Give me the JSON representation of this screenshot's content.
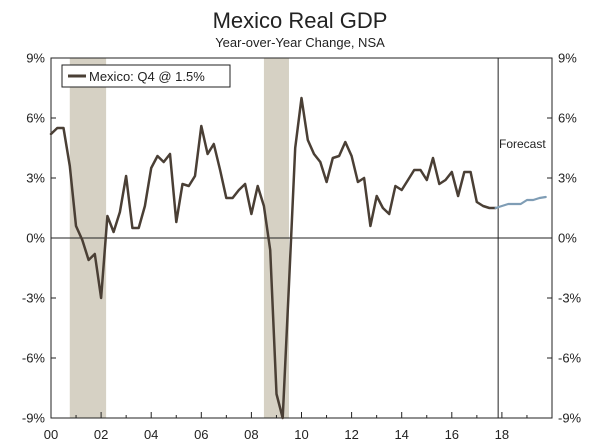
{
  "chart_data": {
    "type": "line",
    "title": "Mexico Real GDP",
    "subtitle": "Year-over-Year Change, NSA",
    "xlabel": "",
    "ylabel": "",
    "xlim": [
      2000.0,
      2020.0
    ],
    "ylim": [
      -9,
      9
    ],
    "y_ticks_left": [
      "9%",
      "6%",
      "3%",
      "0%",
      "-3%",
      "-6%",
      "-9%"
    ],
    "y_ticks_right": [
      "9%",
      "6%",
      "3%",
      "0%",
      "-3%",
      "-6%",
      "-9%"
    ],
    "y_tick_values": [
      9,
      6,
      3,
      0,
      -3,
      -6,
      -9
    ],
    "x_ticks": [
      "00",
      "02",
      "04",
      "06",
      "08",
      "10",
      "12",
      "14",
      "16",
      "18"
    ],
    "x_tick_values": [
      2000,
      2002,
      2004,
      2006,
      2008,
      2010,
      2012,
      2014,
      2016,
      2018
    ],
    "grid": false,
    "legend_placement": "top-left",
    "recessions": [
      [
        2000.75,
        2002.2
      ],
      [
        2008.5,
        2009.5
      ]
    ],
    "forecast_start": 2017.85,
    "annotation": "Forecast",
    "colors": {
      "actual": "#4a3f35",
      "forecast": "#7f9db5",
      "recession": "#d6d1c4",
      "axis": "#222222"
    },
    "series": [
      {
        "name": "Mexico: Q4 @ 1.5%",
        "x": [
          2000.0,
          2000.25,
          2000.5,
          2000.75,
          2001.0,
          2001.25,
          2001.5,
          2001.75,
          2002.0,
          2002.25,
          2002.5,
          2002.75,
          2003.0,
          2003.25,
          2003.5,
          2003.75,
          2004.0,
          2004.25,
          2004.5,
          2004.75,
          2005.0,
          2005.25,
          2005.5,
          2005.75,
          2006.0,
          2006.25,
          2006.5,
          2006.75,
          2007.0,
          2007.25,
          2007.5,
          2007.75,
          2008.0,
          2008.25,
          2008.5,
          2008.75,
          2009.0,
          2009.25,
          2009.5,
          2009.75,
          2010.0,
          2010.25,
          2010.5,
          2010.75,
          2011.0,
          2011.25,
          2011.5,
          2011.75,
          2012.0,
          2012.25,
          2012.5,
          2012.75,
          2013.0,
          2013.25,
          2013.5,
          2013.75,
          2014.0,
          2014.25,
          2014.5,
          2014.75,
          2015.0,
          2015.25,
          2015.5,
          2015.75,
          2016.0,
          2016.25,
          2016.5,
          2016.75,
          2017.0,
          2017.25,
          2017.5,
          2017.75
        ],
        "values": [
          5.2,
          5.5,
          5.5,
          3.6,
          0.6,
          -0.1,
          -1.1,
          -0.8,
          -3.0,
          1.1,
          0.3,
          1.3,
          3.1,
          0.5,
          0.5,
          1.6,
          3.5,
          4.1,
          3.8,
          4.2,
          0.8,
          2.7,
          2.6,
          3.1,
          5.6,
          4.2,
          4.7,
          3.4,
          2.0,
          2.0,
          2.4,
          2.7,
          1.2,
          2.6,
          1.6,
          -0.6,
          -7.8,
          -9.0,
          -2.3,
          4.5,
          7.0,
          4.9,
          4.2,
          3.8,
          2.8,
          4.0,
          4.1,
          4.8,
          4.1,
          2.8,
          3.0,
          0.6,
          2.1,
          1.5,
          1.2,
          2.6,
          2.4,
          2.9,
          3.4,
          3.4,
          2.9,
          4.0,
          2.7,
          2.9,
          3.3,
          2.1,
          3.3,
          3.3,
          1.8,
          1.6,
          1.5,
          1.5
        ]
      },
      {
        "name": "",
        "x": [
          2017.75,
          2018.0,
          2018.25,
          2018.5,
          2018.75,
          2019.0,
          2019.25,
          2019.5,
          2019.75
        ],
        "values": [
          1.5,
          1.6,
          1.7,
          1.7,
          1.7,
          1.9,
          1.9,
          2.0,
          2.05
        ]
      }
    ]
  }
}
